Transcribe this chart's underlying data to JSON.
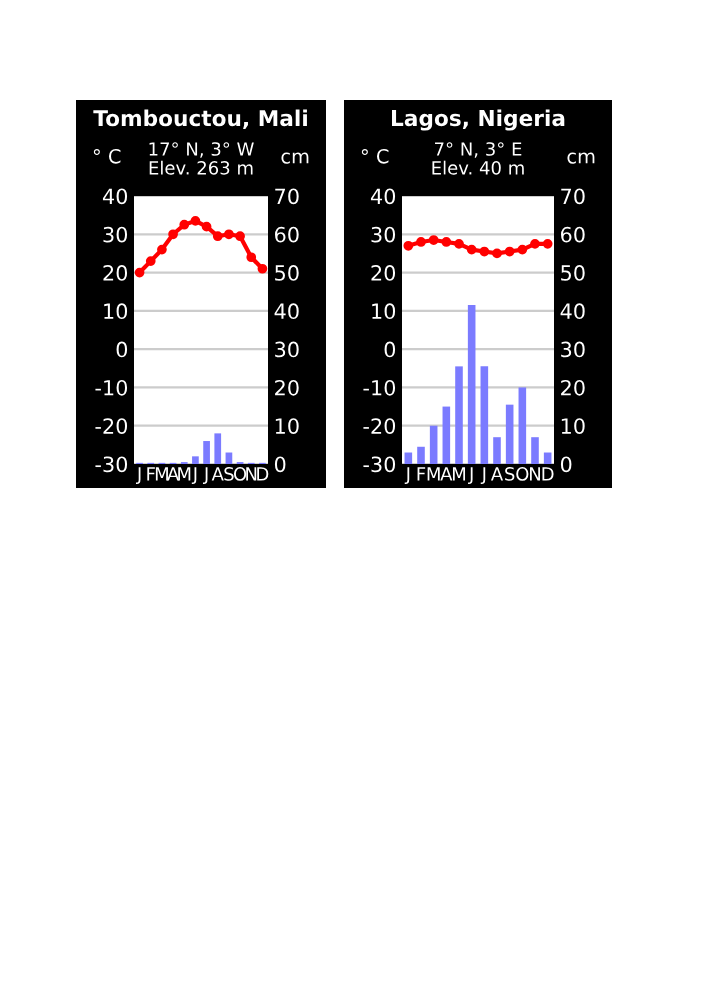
{
  "chart_data": [
    {
      "type": "bar",
      "title": "Tombouctou, Mali",
      "subtitle": "17° N, 3° W\nElev. 263 m",
      "ylabel": "° C",
      "y2label": "cm",
      "categories": [
        "J",
        "F",
        "M",
        "A",
        "M",
        "J",
        "J",
        "A",
        "S",
        "O",
        "N",
        "D"
      ],
      "series": [
        {
          "axis": "y2",
          "color": "#7b7bff",
          "values": [
            0.3,
            0.3,
            0.3,
            0.3,
            0.5,
            2,
            6,
            8,
            3,
            0.5,
            0.3,
            0.3
          ]
        },
        {
          "type": "line",
          "color": "#ff0000",
          "marker": "circle",
          "values": [
            20,
            23,
            26,
            30,
            32.5,
            33.5,
            32,
            29.5,
            30,
            29.5,
            24,
            21
          ]
        }
      ],
      "ylim": [
        -30,
        40
      ],
      "yticks": [
        -30,
        -20,
        -10,
        0,
        10,
        20,
        30,
        40
      ],
      "y2lim": [
        0,
        70
      ],
      "y2ticks": [
        0,
        10,
        20,
        30,
        40,
        50,
        60,
        70
      ],
      "grid": "y"
    },
    {
      "type": "bar",
      "title": "Lagos, Nigeria",
      "subtitle": "7° N, 3° E\nElev. 40 m",
      "ylabel": "° C",
      "y2label": "cm",
      "categories": [
        "J",
        "F",
        "M",
        "A",
        "M",
        "J",
        "J",
        "A",
        "S",
        "O",
        "N",
        "D"
      ],
      "series": [
        {
          "axis": "y2",
          "color": "#7b7bff",
          "values": [
            3,
            4.5,
            10,
            15,
            25.5,
            41.5,
            25.5,
            7,
            15.5,
            20,
            7,
            3
          ]
        },
        {
          "type": "line",
          "color": "#ff0000",
          "marker": "circle",
          "values": [
            27,
            28,
            28.5,
            28,
            27.5,
            26,
            25.5,
            25,
            25.5,
            26,
            27.5,
            27.5
          ]
        }
      ],
      "ylim": [
        -30,
        40
      ],
      "yticks": [
        -30,
        -20,
        -10,
        0,
        10,
        20,
        30,
        40
      ],
      "y2lim": [
        0,
        70
      ],
      "y2ticks": [
        0,
        10,
        20,
        30,
        40,
        50,
        60,
        70
      ],
      "grid": "y"
    }
  ]
}
